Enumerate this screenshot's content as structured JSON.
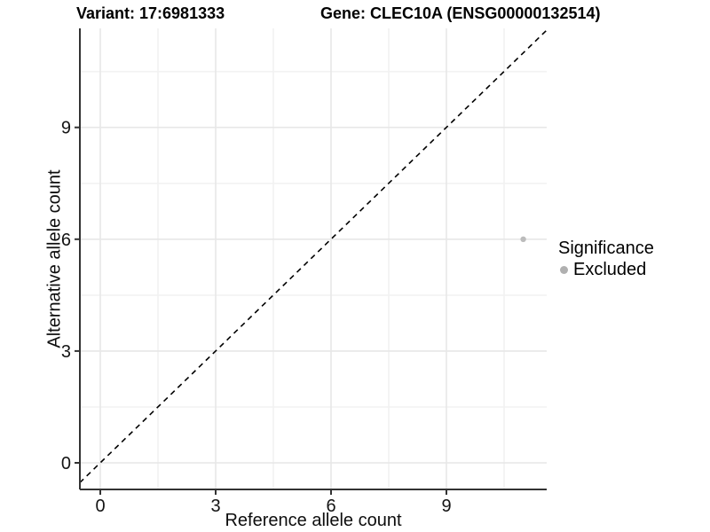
{
  "header": {
    "variant_title": "Variant: 17:6981333",
    "gene_title": "Gene: CLEC10A (ENSG00000132514)"
  },
  "legend": {
    "title": "Significance",
    "items": [
      {
        "label": "Excluded",
        "color": "#b0b0b0",
        "marker": "circle"
      }
    ]
  },
  "chart_data": {
    "type": "scatter",
    "xlabel": "Reference allele count",
    "ylabel": "Alternative allele count",
    "x_ticks": [
      0,
      3,
      6,
      9
    ],
    "y_ticks": [
      0,
      3,
      6,
      9
    ],
    "x_minor_ticks": [
      1.5,
      4.5,
      7.5,
      10.5
    ],
    "y_minor_ticks": [
      1.5,
      4.5,
      7.5,
      10.5
    ],
    "xlim": [
      -0.55,
      11.6
    ],
    "ylim": [
      -0.72,
      11.67
    ],
    "grid": true,
    "legend_position": "right",
    "series": [
      {
        "name": "Excluded",
        "color": "#bcbcbc",
        "points": [
          {
            "x": 11,
            "y": 6
          }
        ]
      }
    ],
    "reference_line": {
      "type": "identity",
      "equation": "y = x",
      "style": "dashed",
      "color": "#000000"
    }
  },
  "colors": {
    "background": "#ffffff",
    "axis_line": "#333333",
    "tick_label": "#141414",
    "grid_major": "#e7e7e7",
    "grid_minor": "#f2f2f2"
  }
}
